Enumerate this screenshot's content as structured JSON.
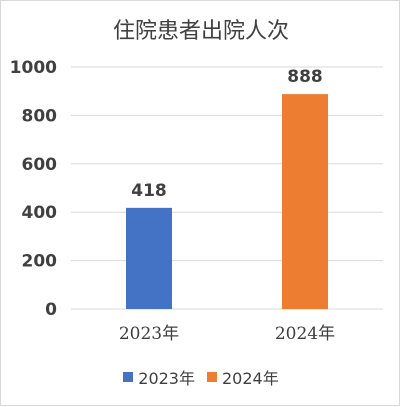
{
  "chart_data": {
    "type": "bar",
    "title": "住院患者出院人次",
    "categories": [
      "2023年",
      "2024年"
    ],
    "series": [
      {
        "name": "2023年",
        "values": [
          418,
          null
        ],
        "color": "#4472C4"
      },
      {
        "name": "2024年",
        "values": [
          null,
          888
        ],
        "color": "#ED7D31"
      }
    ],
    "xlabel": "",
    "ylabel": "",
    "ylim": [
      0,
      1000
    ],
    "yticks": [
      0,
      200,
      400,
      600,
      800,
      1000
    ],
    "grid": true,
    "legend_position": "bottom"
  }
}
